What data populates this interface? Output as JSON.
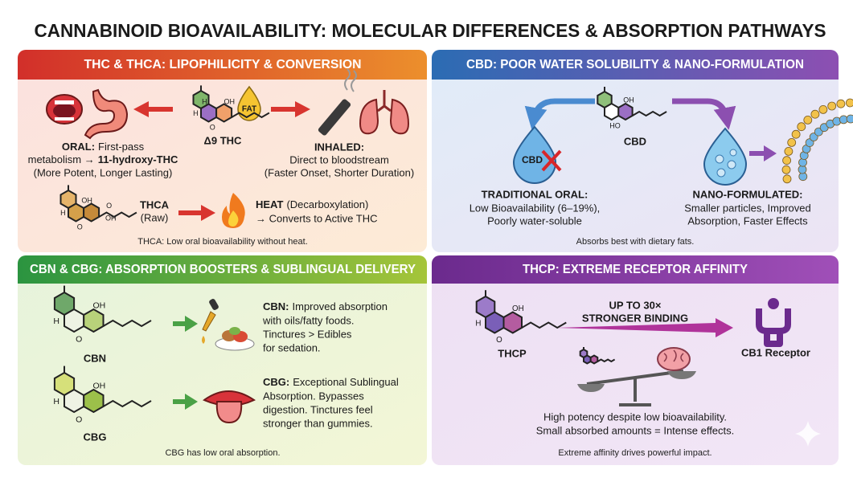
{
  "title": "CANNABINOID BIOAVAILABILITY: MOLECULAR DIFFERENCES & ABSORPTION PATHWAYS",
  "panels": [
    {
      "heading": "THC & THCA: LIPOPHILICITY & CONVERSION",
      "thc_atoms": [
        "H",
        "OH",
        "H",
        "O"
      ],
      "thc_label": "Δ9 THC",
      "fat_badge": "FAT",
      "oral": {
        "label": "ORAL:",
        "text": [
          "First-pass",
          "metabolism →"
        ],
        "metabolite": "11-hydroxy-THC",
        "note": "(More Potent, Longer Lasting)"
      },
      "inhaled": {
        "label": "INHALED:",
        "text": "Direct to bloodstream",
        "note": "(Faster Onset, Shorter Duration)"
      },
      "thca_atoms": [
        "OH",
        "O",
        "OH",
        "H",
        "O"
      ],
      "thca": {
        "label": "THCA",
        "note": "(Raw)"
      },
      "heat": {
        "label": "HEAT",
        "text": "(Decarboxylation)",
        "note": "→ Converts to Active THC"
      },
      "footer": "THCA: Low oral bioavailability without heat."
    },
    {
      "heading": "CBD: POOR WATER SOLUBILITY & NANO-FORMULATION",
      "cbd_atoms": [
        "OH",
        "HO"
      ],
      "cbd_label": "CBD",
      "drop_label": "CBD",
      "oral": {
        "label": "TRADITIONAL ORAL:",
        "lines": [
          "Low Bioavailability (6–19%),",
          "Poorly water-soluble"
        ]
      },
      "nano": {
        "label": "NANO-FORMULATED:",
        "lines": [
          "Smaller particles, Improved",
          "Absorption, Faster Effects"
        ]
      },
      "footer": "Absorbs best with dietary fats."
    },
    {
      "heading": "CBN & CBG: ABSORPTION BOOSTERS & SUBLINGUAL DELIVERY",
      "cbn": {
        "atoms": [
          "OH",
          "H",
          "O"
        ],
        "name": "CBN",
        "label": "CBN:",
        "lines": [
          "Improved absorption",
          "with oils/fatty foods.",
          "Tinctures > Edibles",
          "for sedation."
        ]
      },
      "cbg": {
        "atoms": [
          "OH",
          "H",
          "O"
        ],
        "name": "CBG",
        "label": "CBG:",
        "lines": [
          "Exceptional Sublingual",
          "Absorption. Bypasses",
          "digestion. Tinctures feel",
          "stronger than gummies."
        ]
      },
      "footer": "CBG has low oral absorption."
    },
    {
      "heading": "THCP: EXTREME RECEPTOR AFFINITY",
      "thcp_atoms": [
        "OH",
        "H",
        "O"
      ],
      "thcp_label": "THCP",
      "binding": [
        "UP TO 30×",
        "STRONGER BINDING"
      ],
      "receptor": "CB1 Receptor",
      "lines": [
        "High potency despite low bioavailability.",
        "Small absorbed amounts = Intense effects."
      ],
      "footer": "Extreme affinity drives powerful impact."
    }
  ]
}
